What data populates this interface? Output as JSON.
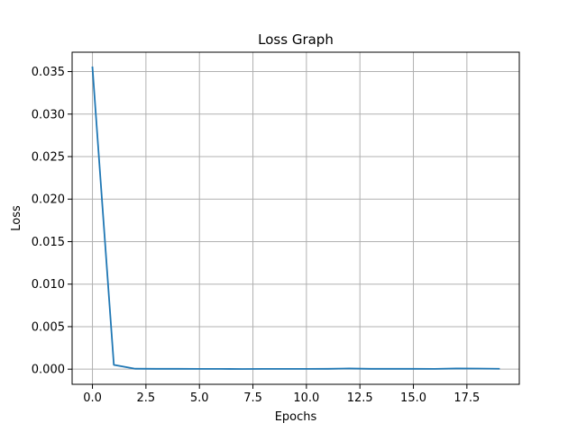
{
  "chart_data": {
    "type": "line",
    "title": "Loss Graph",
    "xlabel": "Epochs",
    "ylabel": "Loss",
    "xlim": [
      -0.95,
      19.95
    ],
    "ylim": [
      -0.00178,
      0.03728
    ],
    "x_ticks": [
      0.0,
      2.5,
      5.0,
      7.5,
      10.0,
      12.5,
      15.0,
      17.5
    ],
    "x_tick_labels": [
      "0.0",
      "2.5",
      "5.0",
      "7.5",
      "10.0",
      "12.5",
      "15.0",
      "17.5"
    ],
    "y_ticks": [
      0.0,
      0.005,
      0.01,
      0.015,
      0.02,
      0.025,
      0.03,
      0.035
    ],
    "y_tick_labels": [
      "0.000",
      "0.005",
      "0.010",
      "0.015",
      "0.020",
      "0.025",
      "0.030",
      "0.035"
    ],
    "grid": true,
    "series": [
      {
        "color": "#1f77b4",
        "x": [
          0,
          1,
          2,
          3,
          4,
          5,
          6,
          7,
          8,
          9,
          10,
          11,
          12,
          13,
          14,
          15,
          16,
          17,
          18,
          19
        ],
        "values": [
          0.0355,
          0.0005,
          5e-05,
          4e-05,
          4e-05,
          3e-05,
          3e-05,
          2e-05,
          3e-05,
          3e-05,
          3e-05,
          4e-05,
          8e-05,
          4e-05,
          4e-05,
          4e-05,
          3e-05,
          8e-05,
          7e-05,
          5e-05
        ]
      }
    ]
  }
}
